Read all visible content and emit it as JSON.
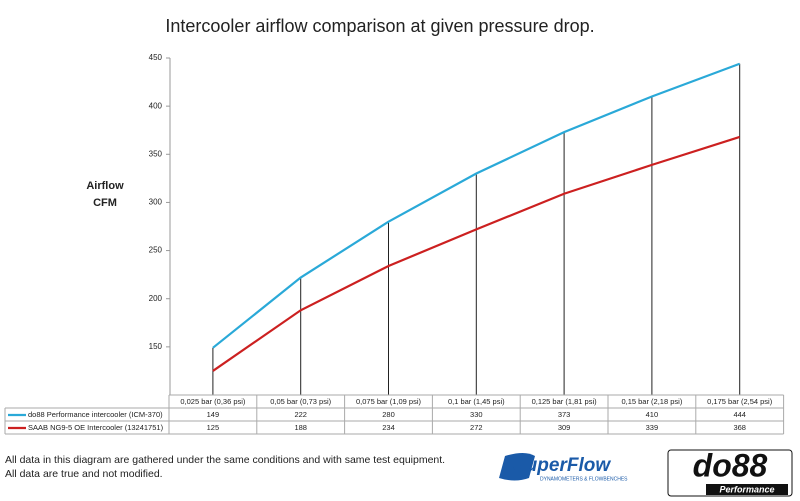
{
  "chart_data": {
    "type": "line",
    "title": "Intercooler airflow comparison at given pressure drop.",
    "y_label": [
      "Airflow",
      "CFM"
    ],
    "categories": [
      "0,025 bar (0,36 psi)",
      "0,05 bar (0,73 psi)",
      "0,075 bar (1,09 psi)",
      "0,1 bar (1,45 psi)",
      "0,125 bar (1,81 psi)",
      "0,15 bar (2,18 psi)",
      "0,175 bar (2,54 psi)"
    ],
    "series": [
      {
        "name": "do88 Performance intercooler (ICM-370)",
        "color": "#2aa9d8",
        "values": [
          149,
          222,
          280,
          330,
          373,
          410,
          444
        ]
      },
      {
        "name": "SAAB NG9-5 OE Intercooler (13241751)",
        "color": "#cc2020",
        "values": [
          125,
          188,
          234,
          272,
          309,
          339,
          368
        ]
      }
    ],
    "ylim": [
      100,
      450
    ],
    "yticks": [
      150,
      200,
      250,
      300,
      350,
      400,
      450
    ],
    "grid": false,
    "notes": [
      "All data in this diagram are gathered under the same conditions and with same test equipment.",
      "All data are true and not modified."
    ],
    "logos": {
      "superflow": "SuperFlow",
      "superflow_sub": "DYNAMOMETERS & FLOWBENCHES",
      "do88": "do88",
      "do88_sub": "Performance"
    }
  }
}
